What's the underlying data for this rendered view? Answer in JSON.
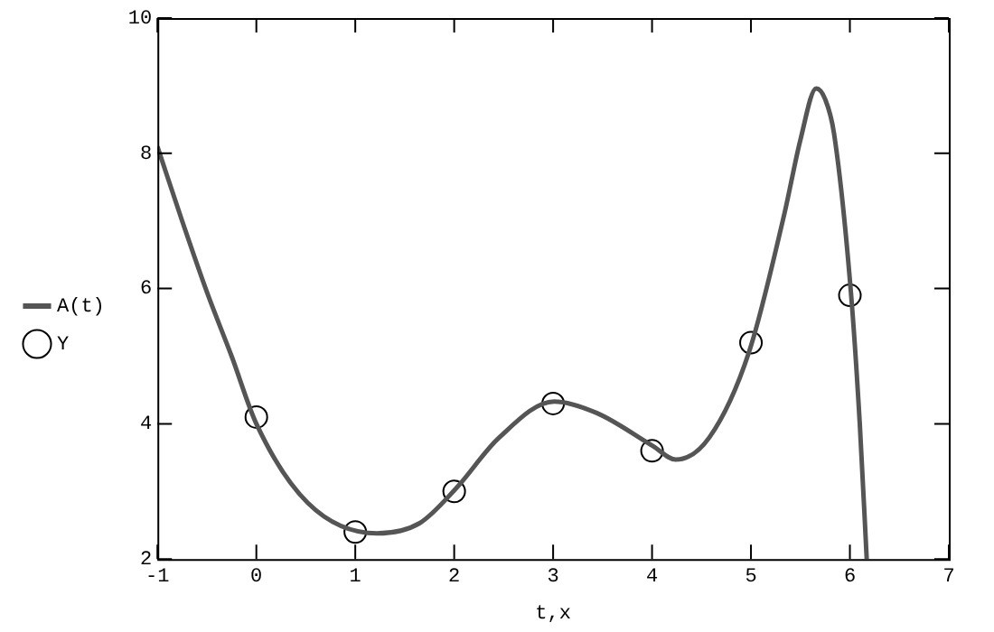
{
  "chart_data": {
    "type": "line",
    "xlabel": "t,x",
    "xlim": [
      -1,
      7
    ],
    "xticks": [
      -1,
      0,
      1,
      2,
      3,
      4,
      5,
      6,
      7
    ],
    "ylim": [
      2,
      10
    ],
    "yticks": [
      2,
      4,
      6,
      8,
      10
    ],
    "grid": false,
    "legend": "left",
    "series": [
      {
        "name": "A(t)",
        "type": "line",
        "marker": "none",
        "color": "#555555",
        "x": [
          -1,
          -0.75,
          -0.5,
          -0.25,
          0,
          0.52,
          1.22,
          1.65,
          2.01,
          2.45,
          3.01,
          3.44,
          4.01,
          4.24,
          4.58,
          4.98,
          5.34,
          5.5,
          5.66,
          5.75,
          5.84,
          6.01,
          6.1,
          6.17
        ],
        "values": [
          8.1,
          7.0,
          5.95,
          5.0,
          4.0,
          2.83,
          2.38,
          2.53,
          3.03,
          3.79,
          4.33,
          4.16,
          3.67,
          3.47,
          3.8,
          5.06,
          7.12,
          8.2,
          8.96,
          8.8,
          8.29,
          5.95,
          4.0,
          2.0
        ]
      },
      {
        "name": "Y",
        "type": "scatter",
        "marker": "circle",
        "color": "#000000",
        "x": [
          0,
          1,
          2,
          3,
          4,
          5,
          6
        ],
        "values": [
          4.1,
          2.4,
          3.0,
          4.3,
          3.6,
          5.2,
          5.9
        ]
      }
    ]
  }
}
